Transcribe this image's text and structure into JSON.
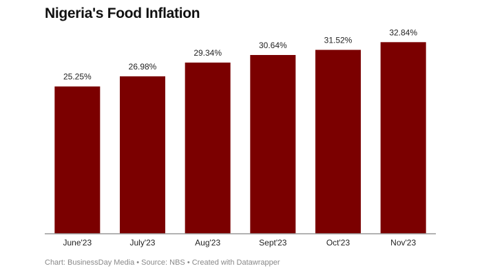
{
  "chart_data": {
    "type": "bar",
    "title": "Nigeria's Food Inflation",
    "categories": [
      "June'23",
      "July'23",
      "Aug'23",
      "Sept'23",
      "Oct'23",
      "Nov'23"
    ],
    "values": [
      25.25,
      26.98,
      29.34,
      30.64,
      31.52,
      32.84
    ],
    "data_labels": [
      "25.25%",
      "26.98%",
      "29.34%",
      "30.64%",
      "31.52%",
      "32.84%"
    ],
    "xlabel": "",
    "ylabel": "",
    "ylim": [
      0,
      35
    ],
    "grid": false,
    "bar_color": "#7b0000"
  },
  "footer": "Chart: BusinessDay Media • Source: NBS • Created with Datawrapper"
}
